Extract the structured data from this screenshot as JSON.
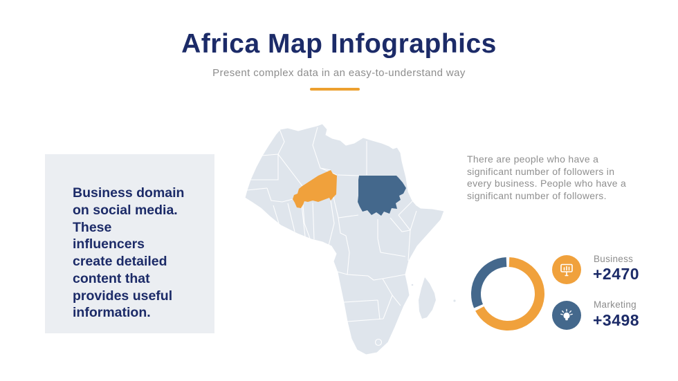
{
  "header": {
    "title": "Africa Map Infographics",
    "subtitle": "Present complex data in an easy-to-understand way"
  },
  "left_panel": {
    "text": "Business domain\non social media.\nThese\ninfluencers\ncreate detailed\ncontent that\nprovides useful\ninformation."
  },
  "right_panel": {
    "text": "There are people who have a\nsignificant number of followers in\nevery business. People who have a\nsignificant number of followers."
  },
  "map": {
    "region": "Africa",
    "base_color": "#DFE5EC",
    "border_color": "#FFFFFF",
    "highlighted_countries": [
      {
        "name": "Niger",
        "color": "#F0A13C"
      },
      {
        "name": "Sudan",
        "color": "#44688C"
      }
    ]
  },
  "chart_data": {
    "type": "donut",
    "title": "",
    "start_angle_deg": -90,
    "gap_deg": 5,
    "segments": [
      {
        "label": "Business",
        "color": "#F0A13C",
        "percent": 68
      },
      {
        "label": "Marketing",
        "color": "#44688C",
        "percent": 32
      }
    ],
    "legend": [
      {
        "label": "Business",
        "value": "+2470",
        "color": "#F0A13C",
        "icon": "presentation-board-icon"
      },
      {
        "label": "Marketing",
        "value": "+3498",
        "color": "#44688C",
        "icon": "lightbulb-icon"
      }
    ]
  },
  "colors": {
    "navy": "#1C2B68",
    "orange": "#F0A13C",
    "steel_blue": "#44688C",
    "divider_orange": "#EDA02F",
    "panel_background": "#EBEEF2",
    "gray_text": "#8F8F8F"
  }
}
